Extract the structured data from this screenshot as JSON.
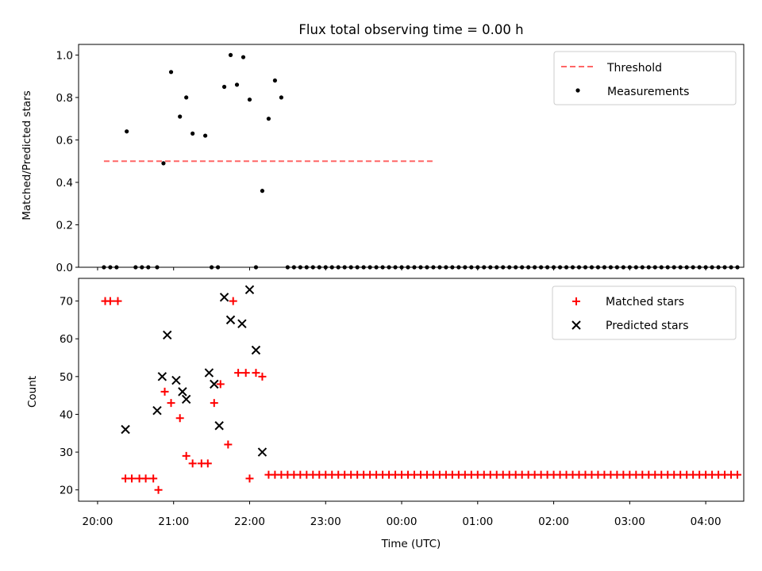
{
  "figure": {
    "title": "Flux total observing time = 0.00 h",
    "xlabel": "Time (UTC)"
  },
  "chart_data": [
    {
      "type": "scatter",
      "panel": "top",
      "ylabel": "Matched/Predicted stars",
      "ylim": [
        0,
        1.05
      ],
      "yticks": [
        "0.0",
        "0.2",
        "0.4",
        "0.6",
        "0.8",
        "1.0"
      ],
      "legend_position": "top-right",
      "threshold": {
        "name": "Threshold",
        "value": 0.5,
        "x_range": [
          "20:05",
          "24:25"
        ],
        "color": "#ff6666"
      },
      "series": [
        {
          "name": "Measurements",
          "color": "#000000",
          "x": [
            "20:05",
            "20:10",
            "20:15",
            "20:23",
            "20:30",
            "20:35",
            "20:40",
            "20:47",
            "20:52",
            "20:58",
            "21:05",
            "21:10",
            "21:15",
            "21:25",
            "21:30",
            "21:35",
            "21:40",
            "21:45",
            "21:50",
            "21:55",
            "22:00",
            "22:05",
            "22:10",
            "22:15",
            "22:20",
            "22:25",
            "22:30",
            "22:35",
            "22:40",
            "22:45",
            "22:50",
            "22:55",
            "23:00",
            "23:05",
            "23:10",
            "23:15",
            "23:20",
            "23:25",
            "23:30",
            "23:35",
            "23:40",
            "23:45",
            "23:50",
            "23:55",
            "24:00",
            "24:05",
            "24:10",
            "24:15",
            "24:20",
            "24:25",
            "24:30",
            "24:35",
            "24:40",
            "24:45",
            "24:50",
            "24:55",
            "25:00",
            "25:05",
            "25:10",
            "25:15",
            "25:20",
            "25:25",
            "25:30",
            "25:35",
            "25:40",
            "25:45",
            "25:50",
            "25:55",
            "26:00",
            "26:05",
            "26:10",
            "26:15",
            "26:20",
            "26:25",
            "26:30",
            "26:35",
            "26:40",
            "26:45",
            "26:50",
            "26:55",
            "27:00",
            "27:05",
            "27:10",
            "27:15",
            "27:20",
            "27:25",
            "27:30",
            "27:35",
            "27:40",
            "27:45",
            "27:50",
            "27:55",
            "28:00",
            "28:05",
            "28:10",
            "28:15",
            "28:20",
            "28:25"
          ],
          "y": [
            0,
            0,
            0,
            0.64,
            0,
            0,
            0,
            0,
            0.49,
            0.92,
            0.71,
            0.8,
            0.63,
            0.62,
            0,
            0,
            0.85,
            1.0,
            0.86,
            0.99,
            0.79,
            0,
            0.36,
            0.7,
            0.88,
            0.8,
            0,
            0,
            0,
            0,
            0,
            0,
            0,
            0,
            0,
            0,
            0,
            0,
            0,
            0,
            0,
            0,
            0,
            0,
            0,
            0,
            0,
            0,
            0,
            0,
            0,
            0,
            0,
            0,
            0,
            0,
            0,
            0,
            0,
            0,
            0,
            0,
            0,
            0,
            0,
            0,
            0,
            0,
            0,
            0,
            0,
            0,
            0,
            0,
            0,
            0,
            0,
            0,
            0,
            0,
            0,
            0,
            0,
            0,
            0,
            0,
            0,
            0,
            0,
            0,
            0,
            0,
            0,
            0,
            0,
            0,
            0,
            0
          ]
        }
      ]
    },
    {
      "type": "scatter",
      "panel": "bottom",
      "ylabel": "Count",
      "ylim": [
        17,
        76
      ],
      "yticks": [
        "20",
        "30",
        "40",
        "50",
        "60",
        "70"
      ],
      "xticks": [
        "20:00",
        "21:00",
        "22:00",
        "23:00",
        "00:00",
        "01:00",
        "02:00",
        "03:00",
        "04:00"
      ],
      "xlim": [
        "19:45",
        "28:30"
      ],
      "legend_position": "top-right",
      "series": [
        {
          "name": "Matched stars",
          "color": "#ff0000",
          "marker": "plus",
          "x": [
            "20:06",
            "20:10",
            "20:16",
            "20:22",
            "20:27",
            "20:33",
            "20:38",
            "20:44",
            "20:48",
            "20:53",
            "20:58",
            "21:05",
            "21:10",
            "21:15",
            "21:22",
            "21:27",
            "21:32",
            "21:37",
            "21:43",
            "21:47",
            "21:51",
            "21:57",
            "22:00",
            "22:05",
            "22:10",
            "22:15",
            "22:20",
            "22:25",
            "22:30",
            "22:35",
            "22:40",
            "22:45",
            "22:50",
            "22:55",
            "23:00",
            "23:05",
            "23:10",
            "23:15",
            "23:20",
            "23:25",
            "23:30",
            "23:35",
            "23:40",
            "23:45",
            "23:50",
            "23:55",
            "24:00",
            "24:05",
            "24:10",
            "24:15",
            "24:20",
            "24:25",
            "24:30",
            "24:35",
            "24:40",
            "24:45",
            "24:50",
            "24:55",
            "25:00",
            "25:05",
            "25:10",
            "25:15",
            "25:20",
            "25:25",
            "25:30",
            "25:35",
            "25:40",
            "25:45",
            "25:50",
            "25:55",
            "26:00",
            "26:05",
            "26:10",
            "26:15",
            "26:20",
            "26:25",
            "26:30",
            "26:35",
            "26:40",
            "26:45",
            "26:50",
            "26:55",
            "27:00",
            "27:05",
            "27:10",
            "27:15",
            "27:20",
            "27:25",
            "27:30",
            "27:35",
            "27:40",
            "27:45",
            "27:50",
            "27:55",
            "28:00",
            "28:05",
            "28:10",
            "28:15",
            "28:20",
            "28:25"
          ],
          "y": [
            70,
            70,
            70,
            23,
            23,
            23,
            23,
            23,
            20,
            46,
            43,
            39,
            29,
            27,
            27,
            27,
            43,
            48,
            32,
            70,
            51,
            51,
            23,
            51,
            50,
            24,
            24,
            24,
            24,
            24,
            24,
            24,
            24,
            24,
            24,
            24,
            24,
            24,
            24,
            24,
            24,
            24,
            24,
            24,
            24,
            24,
            24,
            24,
            24,
            24,
            24,
            24,
            24,
            24,
            24,
            24,
            24,
            24,
            24,
            24,
            24,
            24,
            24,
            24,
            24,
            24,
            24,
            24,
            24,
            24,
            24,
            24,
            24,
            24,
            24,
            24,
            24,
            24,
            24,
            24,
            24,
            24,
            24,
            24,
            24,
            24,
            24,
            24,
            24,
            24,
            24,
            24,
            24,
            24,
            24,
            24,
            24,
            24,
            24,
            24
          ]
        },
        {
          "name": "Predicted stars",
          "color": "#000000",
          "marker": "x",
          "x": [
            "20:22",
            "20:47",
            "20:51",
            "20:55",
            "21:02",
            "21:07",
            "21:10",
            "21:28",
            "21:32",
            "21:36",
            "21:40",
            "21:45",
            "21:54",
            "22:00",
            "22:05",
            "22:10"
          ],
          "y": [
            36,
            41,
            50,
            61,
            49,
            46,
            44,
            51,
            48,
            37,
            71,
            65,
            64,
            73,
            57,
            30
          ]
        }
      ]
    }
  ]
}
